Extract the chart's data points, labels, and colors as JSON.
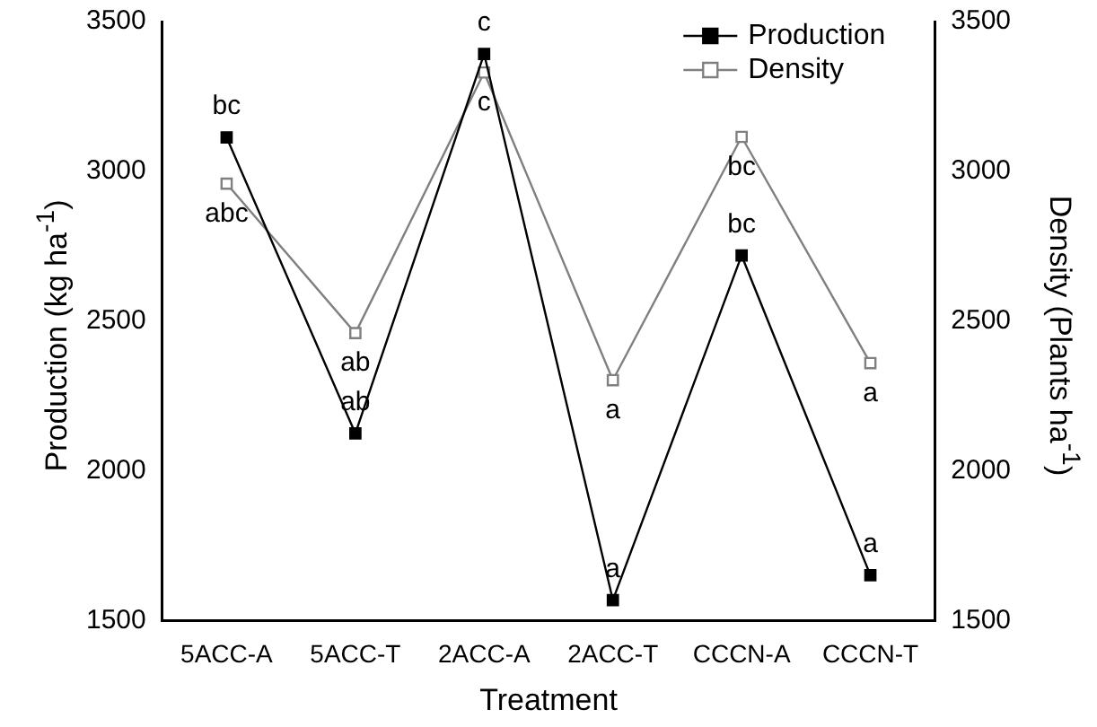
{
  "chart_data": {
    "type": "line",
    "xlabel": "Treatment",
    "ylabel": "Production (kg ha$^{-1}$)",
    "y2label": "Density (Plants ha$^{-1}$)",
    "categories": [
      "5ACC-A",
      "5ACC-T",
      "2ACC-A",
      "2ACC-T",
      "CCCN-A",
      "CCCN-T"
    ],
    "series": [
      {
        "name": "Production",
        "color": "#000000",
        "values": [
          3113,
          2125,
          3392,
          1569,
          2719,
          1652
        ]
      },
      {
        "name": "Density",
        "color": "#808080",
        "axis": "y2",
        "values": [
          2959,
          2460,
          3330,
          2303,
          3115,
          2360
        ]
      }
    ],
    "ylim": [
      1500,
      3500
    ],
    "yticks": [
      1500,
      2000,
      2500,
      3000,
      3500
    ],
    "y2lim": [
      1500,
      3500
    ],
    "y2ticks": [
      1500,
      2000,
      2500,
      3000,
      3500
    ],
    "marker": "square",
    "grid": false,
    "legend": "top right",
    "annotations": [
      {
        "text": "bc",
        "x": "5ACC-A",
        "y": 3113
      },
      {
        "text": "abc",
        "x": "5ACC-A",
        "y": 2959
      },
      {
        "text": "ab",
        "x": "5ACC-T",
        "y": 2460
      },
      {
        "text": "ab",
        "x": "5ACC-T",
        "y": 2125
      },
      {
        "text": "c",
        "x": "2ACC-A",
        "y": 3392
      },
      {
        "text": "c",
        "x": "2ACC-A",
        "y": 3330
      },
      {
        "text": "a",
        "x": "2ACC-T",
        "y": 2303
      },
      {
        "text": "a",
        "x": "2ACC-T",
        "y": 1569
      },
      {
        "text": "bc",
        "x": "CCCN-A",
        "y": 3115
      },
      {
        "text": "bc",
        "x": "CCCN-A",
        "y": 2719
      },
      {
        "text": "a",
        "x": "CCCN-T",
        "y": 2360
      },
      {
        "text": "a",
        "x": "CCCN-T",
        "y": 1652
      }
    ]
  }
}
